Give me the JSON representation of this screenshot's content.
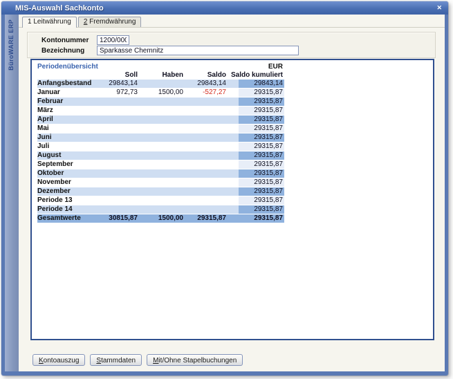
{
  "window": {
    "title": "MIS-Auswahl Sachkonto",
    "close_icon": "✕",
    "brand_vertical": "BüroWARE ERP"
  },
  "tabs": {
    "tab1_label": "1 Leitwährung",
    "tab2_hotkey": "2",
    "tab2_rest": " Fremdwährung"
  },
  "form": {
    "account_number_label": "Kontonummer",
    "account_number_value": "1200/000",
    "description_label": "Bezeichnung",
    "description_value": "Sparkasse Chemnitz"
  },
  "table": {
    "section_title": "Periodenübersicht",
    "currency": "EUR",
    "columns": [
      "Soll",
      "Haben",
      "Saldo",
      "Saldo kumuliert"
    ],
    "rows": [
      {
        "label": "Anfangsbestand",
        "soll": "29843,14",
        "haben": "",
        "saldo": "29843,14",
        "kumuliert": "29843,14"
      },
      {
        "label": "Januar",
        "soll": "972,73",
        "haben": "1500,00",
        "saldo": "-527,27",
        "kumuliert": "29315,87"
      },
      {
        "label": "Februar",
        "soll": "",
        "haben": "",
        "saldo": "",
        "kumuliert": "29315,87"
      },
      {
        "label": "März",
        "soll": "",
        "haben": "",
        "saldo": "",
        "kumuliert": "29315,87"
      },
      {
        "label": "April",
        "soll": "",
        "haben": "",
        "saldo": "",
        "kumuliert": "29315,87"
      },
      {
        "label": "Mai",
        "soll": "",
        "haben": "",
        "saldo": "",
        "kumuliert": "29315,87"
      },
      {
        "label": "Juni",
        "soll": "",
        "haben": "",
        "saldo": "",
        "kumuliert": "29315,87"
      },
      {
        "label": "Juli",
        "soll": "",
        "haben": "",
        "saldo": "",
        "kumuliert": "29315,87"
      },
      {
        "label": "August",
        "soll": "",
        "haben": "",
        "saldo": "",
        "kumuliert": "29315,87"
      },
      {
        "label": "September",
        "soll": "",
        "haben": "",
        "saldo": "",
        "kumuliert": "29315,87"
      },
      {
        "label": "Oktober",
        "soll": "",
        "haben": "",
        "saldo": "",
        "kumuliert": "29315,87"
      },
      {
        "label": "November",
        "soll": "",
        "haben": "",
        "saldo": "",
        "kumuliert": "29315,87"
      },
      {
        "label": "Dezember",
        "soll": "",
        "haben": "",
        "saldo": "",
        "kumuliert": "29315,87"
      },
      {
        "label": "Periode 13",
        "soll": "",
        "haben": "",
        "saldo": "",
        "kumuliert": "29315,87"
      },
      {
        "label": "Periode 14",
        "soll": "",
        "haben": "",
        "saldo": "",
        "kumuliert": "29315,87"
      }
    ],
    "total": {
      "label": "Gesamtwerte",
      "soll": "30815,87",
      "haben": "1500,00",
      "saldo": "29315,87",
      "kumuliert": "29315,87"
    }
  },
  "buttons": [
    {
      "hotkey": "K",
      "rest": "ontoauszug"
    },
    {
      "hotkey": "S",
      "rest": "tammdaten"
    },
    {
      "hotkey": "M",
      "rest": "it/Ohne Stapelbuchungen"
    }
  ],
  "colors": {
    "titlebar_blue": "#4a6fb3",
    "frame_blue": "#5a79b4",
    "panel_border": "#30508f",
    "row_highlight": "#cfdef2",
    "cell_kumuliert_strong": "#8fb2de",
    "cell_kumuliert_light": "#e8eef8",
    "negative_value": "#d42b1e",
    "section_title_blue": "#3a63ae"
  }
}
